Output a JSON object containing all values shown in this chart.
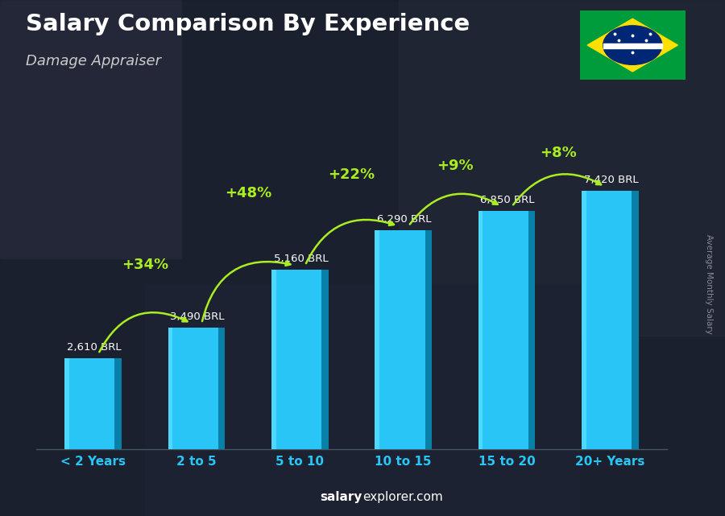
{
  "title": "Salary Comparison By Experience",
  "subtitle": "Damage Appraiser",
  "categories": [
    "< 2 Years",
    "2 to 5",
    "5 to 10",
    "10 to 15",
    "15 to 20",
    "20+ Years"
  ],
  "values": [
    2610,
    3490,
    5160,
    6290,
    6850,
    7420
  ],
  "value_labels": [
    "2,610 BRL",
    "3,490 BRL",
    "5,160 BRL",
    "6,290 BRL",
    "6,850 BRL",
    "7,420 BRL"
  ],
  "pct_labels": [
    "+34%",
    "+48%",
    "+22%",
    "+9%",
    "+8%"
  ],
  "bar_color_main": "#29c5f6",
  "bar_color_left": "#4dd8ff",
  "bar_color_right": "#0fa8d8",
  "bar_color_dark": "#0880aa",
  "pct_color": "#aaee22",
  "title_color": "#ffffff",
  "subtitle_color": "#cccccc",
  "xtick_color": "#29c5f6",
  "bg_dark": "#1a2030",
  "ylabel_text": "Average Monthly Salary",
  "ylim_max": 9200,
  "bar_width": 0.55,
  "arc_rads": [
    -0.5,
    -0.5,
    -0.45,
    -0.45,
    -0.45
  ],
  "pct_fontsize": 13,
  "val_fontsize": 9.5
}
